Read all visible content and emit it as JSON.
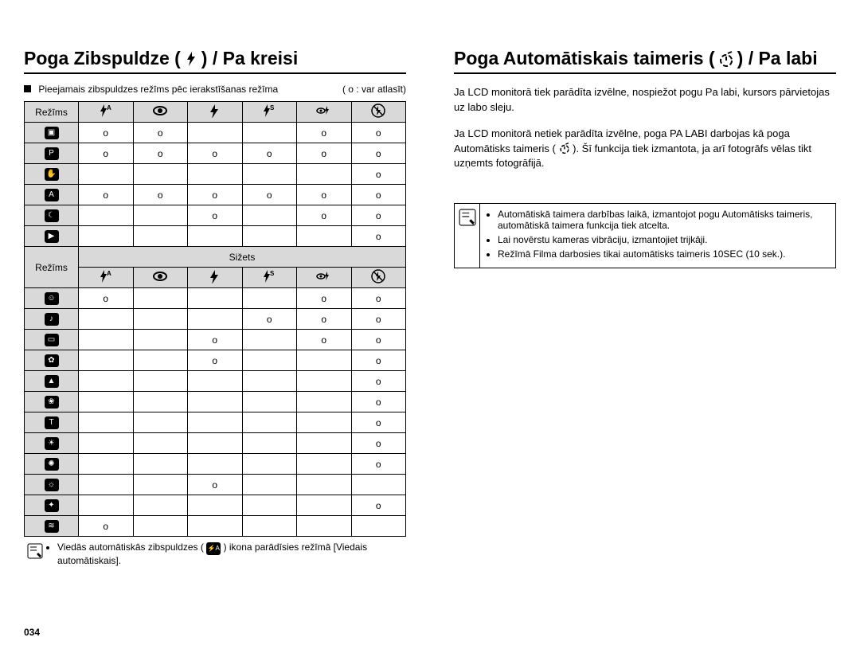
{
  "left": {
    "heading_a": "Poga Zibspuldze (",
    "heading_b": ") / Pa kreisi",
    "subnote": "Pieejamais zibspuldzes režīms pēc ierakstīšanas režīma",
    "right_note": "( o : var atlasīt)",
    "col_mode": "Režīms",
    "sizets": "Sižets",
    "col_icons": [
      "flash-auto",
      "eye",
      "flash",
      "flash-s",
      "flash-eye",
      "no-flash"
    ],
    "rows1": [
      {
        "icon": "camera",
        "c": [
          "o",
          "o",
          "",
          "",
          "o",
          "o"
        ]
      },
      {
        "icon": "camera-p",
        "c": [
          "o",
          "o",
          "o",
          "o",
          "o",
          "o"
        ]
      },
      {
        "icon": "hand",
        "c": [
          "",
          "",
          "",
          "",
          "",
          "o"
        ]
      },
      {
        "icon": "camera-a",
        "c": [
          "o",
          "o",
          "o",
          "o",
          "o",
          "o"
        ]
      },
      {
        "icon": "moon",
        "c": [
          "",
          "",
          "o",
          "",
          "o",
          "o"
        ]
      },
      {
        "icon": "video",
        "c": [
          "",
          "",
          "",
          "",
          "",
          "o"
        ]
      }
    ],
    "rows2": [
      {
        "icon": "portrait",
        "c": [
          "o",
          "",
          "",
          "",
          "o",
          "o"
        ]
      },
      {
        "icon": "kids",
        "c": [
          "",
          "",
          "",
          "o",
          "o",
          "o"
        ]
      },
      {
        "icon": "landscape",
        "c": [
          "",
          "",
          "o",
          "",
          "o",
          "o"
        ]
      },
      {
        "icon": "closeup2",
        "c": [
          "",
          "",
          "o",
          "",
          "",
          "o"
        ]
      },
      {
        "icon": "mountain",
        "c": [
          "",
          "",
          "",
          "",
          "",
          "o"
        ]
      },
      {
        "icon": "flower",
        "c": [
          "",
          "",
          "",
          "",
          "",
          "o"
        ]
      },
      {
        "icon": "text",
        "c": [
          "",
          "",
          "",
          "",
          "",
          "o"
        ]
      },
      {
        "icon": "sunset",
        "c": [
          "",
          "",
          "",
          "",
          "",
          "o"
        ]
      },
      {
        "icon": "dawn",
        "c": [
          "",
          "",
          "",
          "",
          "",
          "o"
        ]
      },
      {
        "icon": "backlight",
        "c": [
          "",
          "",
          "o",
          "",
          "",
          ""
        ]
      },
      {
        "icon": "firework",
        "c": [
          "",
          "",
          "",
          "",
          "",
          "o"
        ]
      },
      {
        "icon": "beach",
        "c": [
          "o",
          "",
          "",
          "",
          "",
          ""
        ]
      }
    ],
    "footnote_a": "Viedās automātiskās zibspuldzes (",
    "footnote_b": ")  ikona parādīsies režīmā [Viedais automātiskais].",
    "pagenum": "034"
  },
  "right": {
    "heading_a": "Poga Automātiskais taimeris (",
    "heading_b": ") / Pa labi",
    "para1": "Ja LCD monitorā tiek parādīta izvēlne, nospiežot pogu Pa labi, kursors pārvietojas uz labo sleju.",
    "para2a": "Ja LCD monitorā netiek parādīta izvēlne, poga PA LABI darbojas kā poga Automātisks taimeris (",
    "para2b": "). Šī funkcija tiek izmantota, ja arī fotogrāfs vēlas tikt uzņemts fotogrāfijā.",
    "bullets": [
      "Automātiskā taimera darbības laikā, izmantojot pogu Automātisks taimeris, automātiskā taimera funkcija tiek atcelta.",
      "Lai novērstu kameras vibrāciju, izmantojiet trijkāji.",
      "Režīmā Filma darbosies tikai automātisks taimeris 10SEC (10 sek.)."
    ]
  }
}
